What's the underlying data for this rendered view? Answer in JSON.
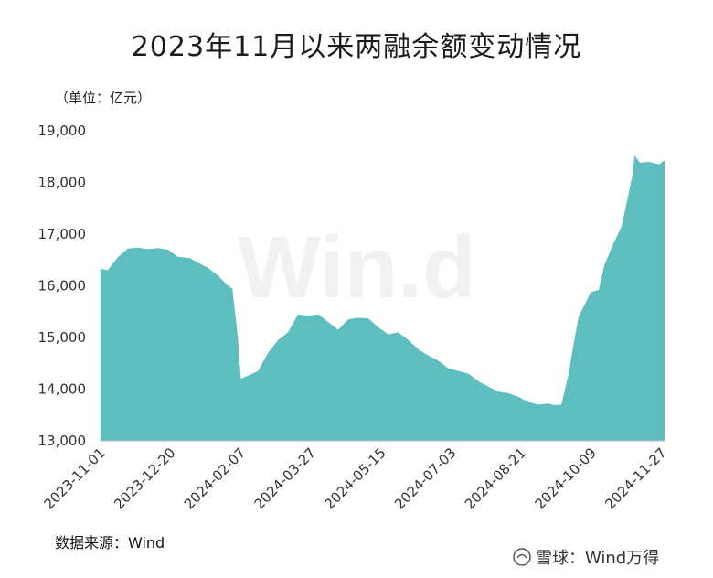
{
  "title": "2023年11月以来两融余额变动情况",
  "unit_label": "（单位：亿元）",
  "source_label": "数据来源：Wind",
  "watermark": "Win.d",
  "brand": {
    "text": "雪球：Wind万得",
    "icon": "snowball-logo-icon"
  },
  "colors": {
    "area": "#5dbdbf",
    "axis": "#bbbbbb"
  },
  "chart_data": {
    "type": "area",
    "title": "2023年11月以来两融余额变动情况",
    "ylabel": "单位：亿元",
    "ylim": [
      13000,
      19000
    ],
    "yticks": [
      13000,
      14000,
      15000,
      16000,
      17000,
      18000,
      19000
    ],
    "ytick_labels": [
      "13,000",
      "14,000",
      "15,000",
      "16,000",
      "17,000",
      "18,000",
      "19,000"
    ],
    "xticks": [
      "2023-11-01",
      "2023-12-20",
      "2024-02-07",
      "2024-03-27",
      "2024-05-15",
      "2024-07-03",
      "2024-08-21",
      "2024-10-09",
      "2024-11-27"
    ],
    "grid": false,
    "x": [
      "2023-11-01",
      "2023-11-06",
      "2023-11-13",
      "2023-11-20",
      "2023-11-27",
      "2023-12-04",
      "2023-12-11",
      "2023-12-18",
      "2023-12-25",
      "2024-01-02",
      "2024-01-08",
      "2024-01-15",
      "2024-01-22",
      "2024-01-29",
      "2024-02-01",
      "2024-02-05",
      "2024-02-07",
      "2024-02-19",
      "2024-02-26",
      "2024-03-04",
      "2024-03-11",
      "2024-03-18",
      "2024-03-25",
      "2024-04-01",
      "2024-04-08",
      "2024-04-15",
      "2024-04-22",
      "2024-04-29",
      "2024-05-06",
      "2024-05-13",
      "2024-05-20",
      "2024-05-27",
      "2024-06-03",
      "2024-06-11",
      "2024-06-17",
      "2024-06-24",
      "2024-07-01",
      "2024-07-08",
      "2024-07-15",
      "2024-07-22",
      "2024-07-29",
      "2024-08-05",
      "2024-08-12",
      "2024-08-19",
      "2024-08-26",
      "2024-09-02",
      "2024-09-09",
      "2024-09-13",
      "2024-09-18",
      "2024-09-23",
      "2024-09-26",
      "2024-09-30",
      "2024-10-08",
      "2024-10-09",
      "2024-10-14",
      "2024-10-18",
      "2024-10-24",
      "2024-10-30",
      "2024-11-04",
      "2024-11-07",
      "2024-11-08",
      "2024-11-12",
      "2024-11-18",
      "2024-11-25",
      "2024-11-29"
    ],
    "values": [
      16330,
      16300,
      16550,
      16720,
      16740,
      16710,
      16730,
      16700,
      16560,
      16540,
      16450,
      16350,
      16200,
      16000,
      15950,
      15000,
      14200,
      14350,
      14700,
      14950,
      15100,
      15450,
      15420,
      15450,
      15300,
      15150,
      15350,
      15380,
      15370,
      15200,
      15060,
      15100,
      14950,
      14750,
      14650,
      14550,
      14400,
      14350,
      14300,
      14150,
      14050,
      13950,
      13920,
      13850,
      13750,
      13700,
      13720,
      13690,
      13700,
      14300,
      14800,
      15400,
      15850,
      15880,
      15920,
      16400,
      16800,
      17150,
      17800,
      18200,
      18520,
      18380,
      18400,
      18350,
      18430
    ]
  }
}
